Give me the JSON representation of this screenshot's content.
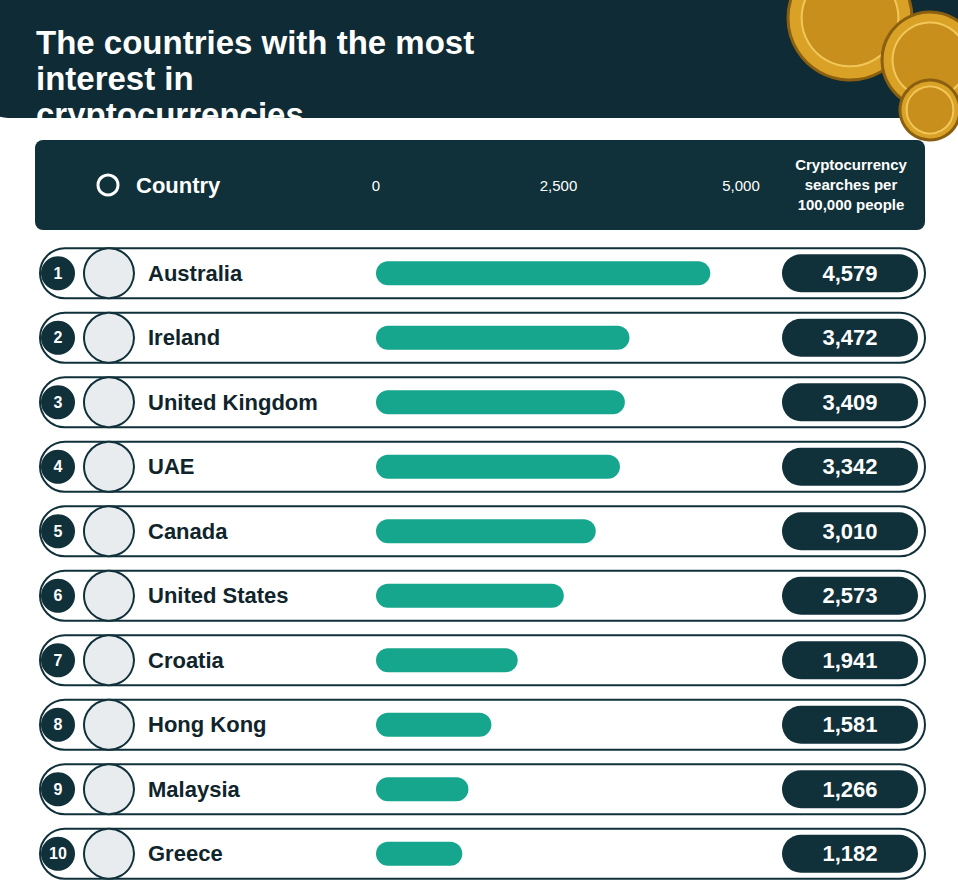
{
  "chart_data": {
    "type": "bar",
    "orientation": "horizontal",
    "title": "The countries with the most interest in cryptocurrencies",
    "category_header": "Country",
    "value_header": "Cryptocurrency searches per 100,000 people",
    "ranks": [
      1,
      2,
      3,
      4,
      5,
      6,
      7,
      8,
      9,
      10
    ],
    "categories": [
      "Australia",
      "Ireland",
      "United Kingdom",
      "UAE",
      "Canada",
      "United States",
      "Croatia",
      "Hong Kong",
      "Malaysia",
      "Greece"
    ],
    "values": [
      4579,
      3472,
      3409,
      3342,
      3010,
      2573,
      1941,
      1581,
      1266,
      1182
    ],
    "value_labels": [
      "4,579",
      "3,472",
      "3,409",
      "3,342",
      "3,010",
      "2,573",
      "1,941",
      "1,581",
      "1,266",
      "1,182"
    ],
    "color": "#16a68e",
    "xlim": [
      0,
      5000
    ],
    "xticks": [
      0,
      {
        "value": 2500,
        "label": "2,500"
      },
      {
        "value": 5000,
        "label": "5,000"
      }
    ],
    "grid": false,
    "data_labels": true
  }
}
